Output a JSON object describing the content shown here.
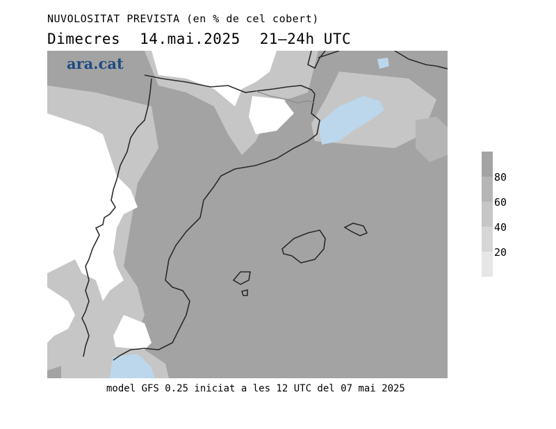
{
  "header": {
    "title": "NUVOLOSITAT PREVISTA (en % de cel cobert)",
    "day": "Dimecres",
    "date": "14.mai.2025",
    "period": "21–24h UTC"
  },
  "logo": {
    "text": "ara.cat"
  },
  "footer": {
    "text": "model GFS 0.25 iniciat a les 12 UTC del 07 mai 2025"
  },
  "legend": {
    "levels": [
      {
        "label": "",
        "color": "#a3a3a3"
      },
      {
        "label": "80",
        "color": "#b5b5b5"
      },
      {
        "label": "60",
        "color": "#c6c6c6"
      },
      {
        "label": "40",
        "color": "#d6d6d6"
      },
      {
        "label": "20",
        "color": "#e6e6e6"
      }
    ]
  },
  "colors": {
    "overcast": "#a3a3a3",
    "clear": "#ffffff",
    "water_clear": "#bcd7ec",
    "coastline": "#2a2a2a"
  }
}
